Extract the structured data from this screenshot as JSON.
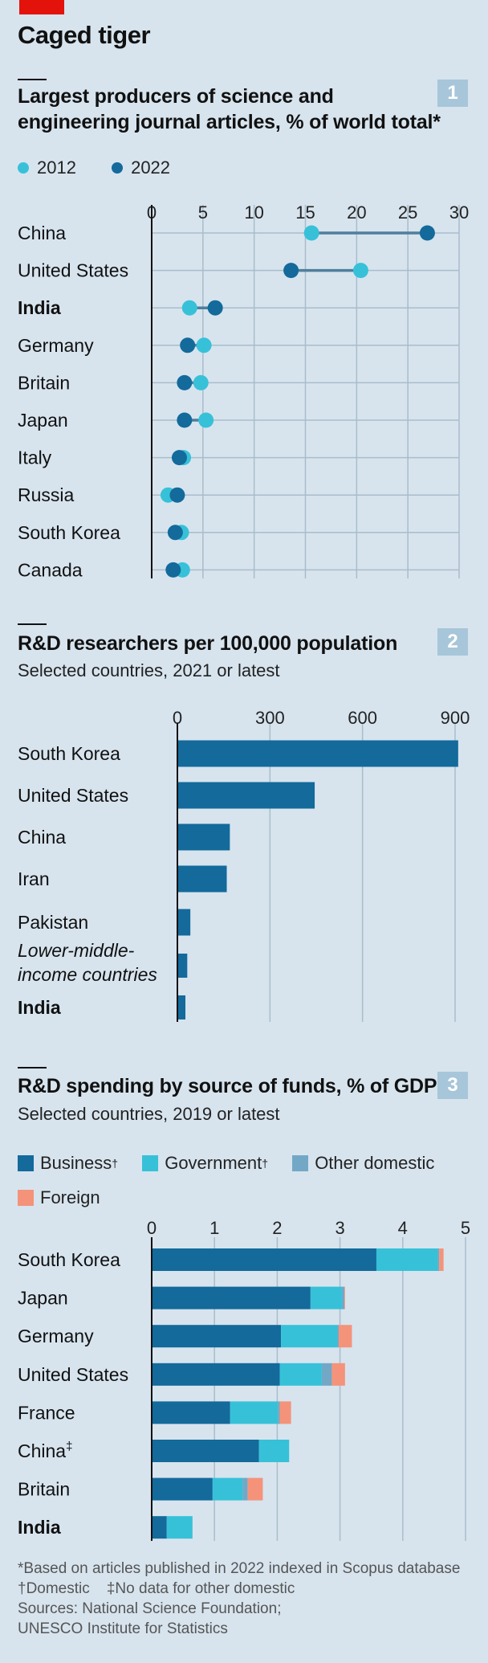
{
  "title": "Caged tiger",
  "colors": {
    "c2012": "#37c1d8",
    "c2022": "#136a9b",
    "business": "#136a9b",
    "government": "#37c1d8",
    "other_domestic": "#72a8c6",
    "foreign": "#f4937a",
    "grid": "#a9bdcb"
  },
  "chart_data": [
    {
      "type": "dot",
      "badge": "1",
      "title_lines": [
        "Largest producers of science and",
        "engineering journal articles, % of world total*"
      ],
      "series_names": [
        "2012",
        "2022"
      ],
      "xlim": [
        0,
        30
      ],
      "ticks": [
        "0",
        "5",
        "10",
        "15",
        "20",
        "25",
        "30"
      ],
      "tick_values": [
        0,
        5,
        10,
        15,
        20,
        25,
        30
      ],
      "categories": [
        "China",
        "United States",
        "India",
        "Germany",
        "Britain",
        "Japan",
        "Italy",
        "Russia",
        "South Korea",
        "Canada"
      ],
      "highlight": "India",
      "values_2012": [
        15.6,
        20.4,
        3.7,
        5.1,
        4.8,
        5.3,
        3.1,
        1.6,
        2.9,
        3.0
      ],
      "values_2022": [
        26.9,
        13.6,
        6.2,
        3.5,
        3.2,
        3.2,
        2.7,
        2.5,
        2.3,
        2.1
      ]
    },
    {
      "type": "bar",
      "badge": "2",
      "title": "R&D researchers per 100,000 population",
      "subtitle": "Selected countries, 2021 or latest",
      "xlim": [
        0,
        900
      ],
      "ticks": [
        "0",
        "300",
        "600",
        "900"
      ],
      "tick_values": [
        0,
        300,
        600,
        900
      ],
      "categories": [
        [
          "South Korea"
        ],
        [
          "United States"
        ],
        [
          "China"
        ],
        [
          "Iran"
        ],
        [
          "Pakistan"
        ],
        [
          "Lower-middle-",
          "income countries"
        ],
        [
          "India"
        ]
      ],
      "italic": [
        false,
        false,
        false,
        false,
        false,
        true,
        false
      ],
      "highlight": [
        false,
        false,
        false,
        false,
        false,
        false,
        true
      ],
      "values": [
        910,
        445,
        170,
        160,
        42,
        32,
        26
      ]
    },
    {
      "type": "stacked_bar",
      "badge": "3",
      "title": "R&D spending by source of funds, % of GDP",
      "subtitle": "Selected countries, 2019 or latest",
      "xlim": [
        0,
        5
      ],
      "ticks": [
        "0",
        "1",
        "2",
        "3",
        "4",
        "5"
      ],
      "tick_values": [
        0,
        1,
        2,
        3,
        4,
        5
      ],
      "legend": [
        {
          "name": "Business",
          "mark": "†",
          "color_key": "business"
        },
        {
          "name": "Government",
          "mark": "†",
          "color_key": "government"
        },
        {
          "name": "Other domestic",
          "mark": "",
          "color_key": "other_domestic"
        },
        {
          "name": "Foreign",
          "mark": "",
          "color_key": "foreign"
        }
      ],
      "categories": [
        "South Korea",
        "Japan",
        "Germany",
        "United States",
        "France",
        "China",
        "Britain",
        "India"
      ],
      "marks": [
        "",
        "",
        "",
        "",
        "",
        "‡",
        "",
        ""
      ],
      "highlight": "India",
      "series": [
        {
          "name": "Business",
          "values": [
            3.58,
            2.53,
            2.06,
            2.04,
            1.25,
            1.71,
            0.97,
            0.24
          ]
        },
        {
          "name": "Government",
          "values": [
            0.98,
            0.5,
            0.9,
            0.67,
            0.76,
            0.48,
            0.48,
            0.41
          ]
        },
        {
          "name": "Other domestic",
          "values": [
            0.02,
            0.04,
            0.02,
            0.16,
            0.03,
            0,
            0.08,
            0
          ]
        },
        {
          "name": "Foreign",
          "values": [
            0.07,
            0.01,
            0.21,
            0.21,
            0.18,
            0,
            0.24,
            0
          ]
        }
      ]
    }
  ],
  "footnotes": [
    "*Based on articles published in 2022 indexed in Scopus database",
    "†Domestic    ‡No data for other domestic",
    "Sources: National Science Foundation;",
    "UNESCO Institute for Statistics"
  ]
}
